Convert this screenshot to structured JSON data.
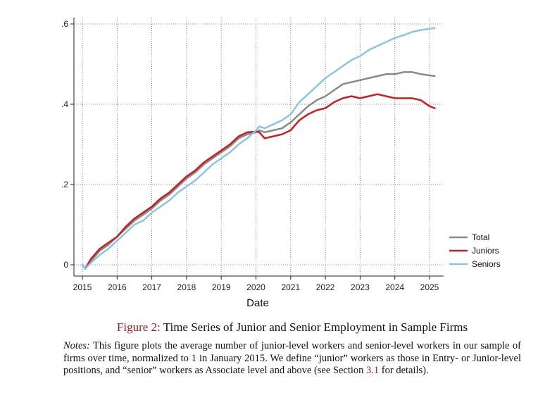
{
  "chart_data": {
    "type": "line",
    "title": "",
    "xlabel": "Date",
    "ylabel": "",
    "xlim": [
      2015.0,
      2025.25
    ],
    "ylim": [
      0,
      0.6
    ],
    "x_ticks": [
      2015,
      2016,
      2017,
      2018,
      2019,
      2020,
      2021,
      2022,
      2023,
      2024,
      2025
    ],
    "x_tick_labels": [
      "2015",
      "2016",
      "2017",
      "2018",
      "2019",
      "2020",
      "2021",
      "2022",
      "2023",
      "2024",
      "2025"
    ],
    "y_ticks": [
      0,
      0.2,
      0.4,
      0.6
    ],
    "y_tick_labels": [
      "0",
      ".2",
      ".4",
      ".6"
    ],
    "grid": true,
    "legend_position": "right",
    "series": [
      {
        "name": "Total",
        "color": "#8a8a8a",
        "x": [
          2015.0,
          2015.08,
          2015.25,
          2015.5,
          2015.75,
          2016.0,
          2016.25,
          2016.5,
          2016.75,
          2017.0,
          2017.25,
          2017.5,
          2017.75,
          2018.0,
          2018.25,
          2018.5,
          2018.75,
          2019.0,
          2019.25,
          2019.5,
          2019.75,
          2020.0,
          2020.1,
          2020.25,
          2020.5,
          2020.75,
          2021.0,
          2021.25,
          2021.5,
          2021.75,
          2022.0,
          2022.25,
          2022.5,
          2022.75,
          2023.0,
          2023.25,
          2023.5,
          2023.75,
          2024.0,
          2024.25,
          2024.5,
          2024.75,
          2025.0,
          2025.15
        ],
        "y": [
          0.0,
          -0.01,
          0.01,
          0.035,
          0.05,
          0.07,
          0.09,
          0.11,
          0.125,
          0.14,
          0.16,
          0.175,
          0.195,
          0.215,
          0.23,
          0.25,
          0.265,
          0.28,
          0.295,
          0.315,
          0.325,
          0.33,
          0.335,
          0.33,
          0.335,
          0.34,
          0.355,
          0.375,
          0.395,
          0.41,
          0.42,
          0.435,
          0.45,
          0.455,
          0.46,
          0.465,
          0.47,
          0.475,
          0.475,
          0.48,
          0.48,
          0.475,
          0.472,
          0.47
        ]
      },
      {
        "name": "Juniors",
        "color": "#c81e1e",
        "x": [
          2015.0,
          2015.08,
          2015.25,
          2015.5,
          2015.75,
          2016.0,
          2016.25,
          2016.5,
          2016.75,
          2017.0,
          2017.25,
          2017.5,
          2017.75,
          2018.0,
          2018.25,
          2018.5,
          2018.75,
          2019.0,
          2019.25,
          2019.5,
          2019.75,
          2020.0,
          2020.1,
          2020.25,
          2020.5,
          2020.75,
          2021.0,
          2021.25,
          2021.5,
          2021.75,
          2022.0,
          2022.25,
          2022.5,
          2022.75,
          2023.0,
          2023.25,
          2023.5,
          2023.75,
          2024.0,
          2024.25,
          2024.5,
          2024.75,
          2025.0,
          2025.15
        ],
        "y": [
          0.0,
          -0.01,
          0.015,
          0.04,
          0.055,
          0.07,
          0.095,
          0.115,
          0.13,
          0.145,
          0.165,
          0.18,
          0.2,
          0.22,
          0.235,
          0.255,
          0.27,
          0.285,
          0.3,
          0.32,
          0.33,
          0.332,
          0.33,
          0.315,
          0.32,
          0.325,
          0.335,
          0.36,
          0.375,
          0.385,
          0.39,
          0.405,
          0.415,
          0.42,
          0.415,
          0.42,
          0.425,
          0.42,
          0.415,
          0.415,
          0.415,
          0.41,
          0.395,
          0.39
        ]
      },
      {
        "name": "Seniors",
        "color": "#8ec4e3",
        "x": [
          2015.0,
          2015.08,
          2015.25,
          2015.5,
          2015.75,
          2016.0,
          2016.25,
          2016.5,
          2016.75,
          2017.0,
          2017.25,
          2017.5,
          2017.75,
          2018.0,
          2018.25,
          2018.5,
          2018.75,
          2019.0,
          2019.25,
          2019.5,
          2019.75,
          2020.0,
          2020.1,
          2020.25,
          2020.5,
          2020.75,
          2021.0,
          2021.25,
          2021.5,
          2021.75,
          2022.0,
          2022.25,
          2022.5,
          2022.75,
          2023.0,
          2023.25,
          2023.5,
          2023.75,
          2024.0,
          2024.25,
          2024.5,
          2024.75,
          2025.0,
          2025.15
        ],
        "y": [
          0.0,
          -0.01,
          0.005,
          0.025,
          0.04,
          0.06,
          0.08,
          0.1,
          0.11,
          0.13,
          0.145,
          0.16,
          0.18,
          0.195,
          0.21,
          0.23,
          0.25,
          0.265,
          0.28,
          0.3,
          0.315,
          0.335,
          0.345,
          0.34,
          0.35,
          0.36,
          0.375,
          0.405,
          0.425,
          0.445,
          0.465,
          0.48,
          0.495,
          0.51,
          0.52,
          0.535,
          0.545,
          0.555,
          0.565,
          0.572,
          0.58,
          0.585,
          0.588,
          0.59
        ]
      }
    ]
  },
  "caption": {
    "figure_label": "Figure 2:",
    "figure_title": "Time Series of Junior and Senior Employment in Sample Firms",
    "notes_label": "Notes:",
    "notes_text_1": "This figure plots the average number of junior-level workers and senior-level workers in our sample of firms over time, normalized to 1 in January 2015. We define “junior” workers as those in Entry- or Junior-level positions, and “senior” workers as Associate level and above (see Section ",
    "notes_ref": "3.1",
    "notes_text_2": " for details)."
  }
}
